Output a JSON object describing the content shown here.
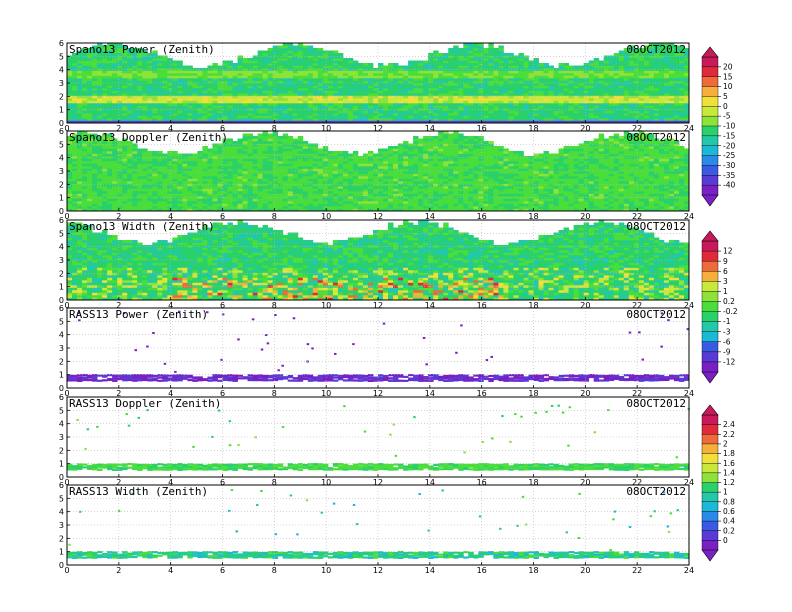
{
  "chart_data": [
    {
      "type": "heatmap",
      "title": "Spano13 Power (Zenith)",
      "date": "08OCT2012",
      "xlim": [
        0,
        24
      ],
      "ylim": [
        0,
        6
      ],
      "x_ticks": [
        0,
        2,
        4,
        6,
        8,
        10,
        12,
        14,
        16,
        18,
        20,
        22,
        24
      ],
      "y_ticks": [
        0,
        1,
        2,
        3,
        4,
        5,
        6
      ],
      "grid": true,
      "colorbar": "A"
    },
    {
      "type": "heatmap",
      "title": "Spano13 Doppler (Zenith)",
      "date": "08OCT2012",
      "xlim": [
        0,
        24
      ],
      "ylim": [
        0,
        6
      ],
      "x_ticks": [
        0,
        2,
        4,
        6,
        8,
        10,
        12,
        14,
        16,
        18,
        20,
        22,
        24
      ],
      "y_ticks": [
        0,
        1,
        2,
        3,
        4,
        5,
        6
      ],
      "grid": true,
      "colorbar": "A"
    },
    {
      "type": "heatmap",
      "title": "Spano13 Width (Zenith)",
      "date": "08OCT2012",
      "xlim": [
        0,
        24
      ],
      "ylim": [
        0,
        6
      ],
      "x_ticks": [
        0,
        2,
        4,
        6,
        8,
        10,
        12,
        14,
        16,
        18,
        20,
        22,
        24
      ],
      "y_ticks": [
        0,
        1,
        2,
        3,
        4,
        5,
        6
      ],
      "grid": true,
      "colorbar": "B"
    },
    {
      "type": "heatmap",
      "title": "RASS13 Power (Zenith)",
      "date": "08OCT2012",
      "xlim": [
        0,
        24
      ],
      "ylim": [
        0,
        6
      ],
      "x_ticks": [
        0,
        2,
        4,
        6,
        8,
        10,
        12,
        14,
        16,
        18,
        20,
        22,
        24
      ],
      "y_ticks": [
        0,
        1,
        2,
        3,
        4,
        5,
        6
      ],
      "grid": true,
      "colorbar": "B"
    },
    {
      "type": "heatmap",
      "title": "RASS13 Doppler (Zenith)",
      "date": "08OCT2012",
      "xlim": [
        0,
        24
      ],
      "ylim": [
        0,
        6
      ],
      "x_ticks": [
        0,
        2,
        4,
        6,
        8,
        10,
        12,
        14,
        16,
        18,
        20,
        22,
        24
      ],
      "y_ticks": [
        0,
        1,
        2,
        3,
        4,
        5,
        6
      ],
      "grid": true,
      "colorbar": "C"
    },
    {
      "type": "heatmap",
      "title": "RASS13 Width (Zenith)",
      "date": "08OCT2012",
      "xlim": [
        0,
        24
      ],
      "ylim": [
        0,
        6
      ],
      "x_ticks": [
        0,
        2,
        4,
        6,
        8,
        10,
        12,
        14,
        16,
        18,
        20,
        22,
        24
      ],
      "y_ticks": [
        0,
        1,
        2,
        3,
        4,
        5,
        6
      ],
      "grid": true,
      "colorbar": "C"
    }
  ],
  "colorbars": {
    "A": {
      "labels": [
        "20",
        "15",
        "10",
        "5",
        "0",
        "-5",
        "-10",
        "-15",
        "-20",
        "-25",
        "-30",
        "-35",
        "-40"
      ]
    },
    "B": {
      "labels": [
        "12",
        "9",
        "6",
        "3",
        "1",
        "0.2",
        "-0.2",
        "-1",
        "-3",
        "-6",
        "-9",
        "-12"
      ]
    },
    "C": {
      "labels": [
        "2.4",
        "2.2",
        "2",
        "1.8",
        "1.6",
        "1.4",
        "1.2",
        "1",
        "0.8",
        "0.6",
        "0.4",
        "0.2",
        "0"
      ]
    }
  },
  "colors": {
    "palette": [
      "#7a1fc4",
      "#5a3ad6",
      "#3a5ae6",
      "#2a8ae8",
      "#1cb8d8",
      "#22c8a8",
      "#2ad06a",
      "#4ade3a",
      "#8ee23a",
      "#c8e83a",
      "#f2e03a",
      "#f4b03a",
      "#ee6a3a",
      "#e02a3a",
      "#c81a5a"
    ]
  }
}
